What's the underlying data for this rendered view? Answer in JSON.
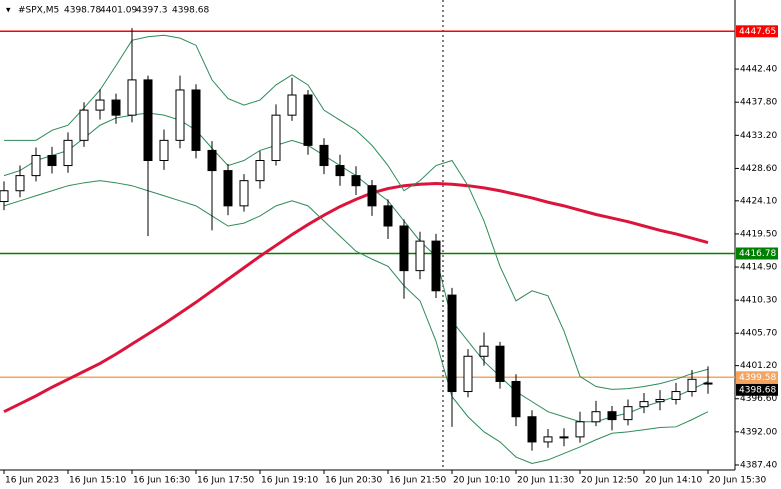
{
  "chart_data": {
    "type": "candlestick",
    "symbol": "#SPX,M5",
    "categories": [
      "16 Jun 2023",
      null,
      null,
      null,
      "16 Jun 15:10",
      null,
      null,
      null,
      "16 Jun 16:30",
      null,
      null,
      null,
      "16 Jun 17:50",
      null,
      null,
      null,
      "16 Jun 19:10",
      null,
      null,
      null,
      "16 Jun 20:30",
      null,
      null,
      null,
      "16 Jun 21:50",
      null,
      null,
      null,
      "20 Jun 10:10",
      null,
      null,
      null,
      "20 Jun 11:30",
      null,
      null,
      null,
      "20 Jun 12:50",
      null,
      null,
      null,
      "20 Jun 14:10",
      null,
      null,
      null,
      "20 Jun 15:30"
    ],
    "open": [
      4424.0,
      4425.5,
      4427.6,
      4430.4,
      4429.0,
      4432.5,
      4436.7,
      4438.1,
      4436.0,
      4440.9,
      4429.7,
      4432.5,
      4439.5,
      4431.1,
      4428.3,
      4423.4,
      4426.9,
      4429.7,
      4436.0,
      4438.8,
      4431.8,
      4429.0,
      4427.6,
      4426.2,
      4423.4,
      4420.6,
      4414.4,
      4418.5,
      4411.0,
      4397.6,
      4402.5,
      4403.9,
      4399.0,
      4394.1,
      4390.6,
      4391.3,
      4391.3,
      4393.4,
      4394.8,
      4393.7,
      4395.5,
      4396.2,
      4396.5,
      4397.6,
      4398.78
    ],
    "high": [
      4426.8,
      4429.0,
      4431.5,
      4431.6,
      4433.6,
      4437.8,
      4439.6,
      4439.0,
      4448.1,
      4441.5,
      4434.0,
      4441.5,
      4440.3,
      4432.4,
      4429.2,
      4427.8,
      4431.0,
      4437.5,
      4441.2,
      4439.5,
      4432.8,
      4430.5,
      4428.9,
      4427.0,
      4424.3,
      4421.5,
      4419.8,
      4419.5,
      4412.0,
      4403.5,
      4405.8,
      4404.5,
      4400.0,
      4395.0,
      4392.4,
      4392.5,
      4394.8,
      4396.3,
      4395.6,
      4396.5,
      4397.4,
      4397.8,
      4398.8,
      4400.6,
      4401.09
    ],
    "low": [
      4422.8,
      4424.6,
      4426.8,
      4427.9,
      4428.0,
      4431.6,
      4435.4,
      4434.8,
      4435.0,
      4419.2,
      4428.4,
      4431.4,
      4430.0,
      4420.0,
      4422.1,
      4422.6,
      4425.8,
      4429.0,
      4435.2,
      4430.5,
      4427.8,
      4426.2,
      4424.9,
      4422.0,
      4418.8,
      4410.5,
      4413.2,
      4410.6,
      4392.7,
      4396.8,
      4401.2,
      4398.0,
      4392.8,
      4389.4,
      4389.8,
      4390.0,
      4390.5,
      4392.8,
      4392.2,
      4392.9,
      4394.6,
      4395.0,
      4395.8,
      4396.9,
      4397.3
    ],
    "close": [
      4425.5,
      4427.6,
      4430.4,
      4429.0,
      4432.5,
      4436.7,
      4438.1,
      4436.0,
      4440.9,
      4429.7,
      4432.5,
      4439.5,
      4431.1,
      4428.3,
      4423.4,
      4426.9,
      4429.7,
      4436.0,
      4438.8,
      4431.8,
      4429.0,
      4427.6,
      4426.2,
      4423.4,
      4420.6,
      4414.4,
      4418.5,
      4411.6,
      4397.6,
      4402.5,
      4403.9,
      4399.0,
      4394.1,
      4390.6,
      4391.3,
      4391.3,
      4393.4,
      4394.8,
      4393.7,
      4395.5,
      4396.2,
      4396.5,
      4397.6,
      4399.3,
      4398.68
    ],
    "indicators": [
      {
        "color": "#dc143c",
        "width": 3,
        "values": [
          4394.8,
          4395.9,
          4397.0,
          4398.2,
          4399.3,
          4400.4,
          4401.5,
          4402.8,
          4404.2,
          4405.6,
          4407.0,
          4408.5,
          4410.0,
          4411.6,
          4413.2,
          4414.8,
          4416.4,
          4417.9,
          4419.4,
          4420.8,
          4422.1,
          4423.3,
          4424.3,
          4425.2,
          4425.8,
          4426.2,
          4426.4,
          4426.5,
          4426.4,
          4426.2,
          4425.9,
          4425.5,
          4425.0,
          4424.5,
          4423.9,
          4423.4,
          4422.8,
          4422.2,
          4421.7,
          4421.2,
          4420.6,
          4420.0,
          4419.5,
          4418.9,
          4418.3
        ]
      },
      {
        "color": "#2e8b57",
        "width": 1,
        "values": [
          4432.5,
          4432.5,
          4432.5,
          4433.9,
          4434.6,
          4437.0,
          4439.5,
          4442.9,
          4446.4,
          4446.9,
          4447.1,
          4446.7,
          4445.7,
          4440.9,
          4438.3,
          4437.4,
          4438.1,
          4440.2,
          4441.6,
          4440.2,
          4436.7,
          4435.3,
          4433.9,
          4431.8,
          4429.0,
          4425.5,
          4426.9,
          4429.0,
          4429.7,
          4426.2,
          4421.3,
          4415.0,
          4410.2,
          4411.6,
          4410.9,
          4406.0,
          4399.7,
          4398.3,
          4397.9,
          4398.0,
          4398.3,
          4398.7,
          4399.3,
          4400.1,
          4400.7
        ]
      },
      {
        "color": "#2e8b57",
        "width": 1,
        "values": [
          4427.6,
          4428.3,
          4429.7,
          4430.4,
          4431.1,
          4432.8,
          4434.6,
          4435.6,
          4436.0,
          4436.3,
          4436.0,
          4435.3,
          4433.9,
          4431.4,
          4429.0,
          4429.7,
          4431.1,
          4431.8,
          4432.5,
          4431.8,
          4430.4,
          4429.0,
          4427.6,
          4425.8,
          4424.1,
          4421.3,
          4418.5,
          4416.4,
          4407.4,
          4404.6,
          4401.8,
          4399.7,
          4397.6,
          4396.2,
          4394.8,
          4394.1,
          4393.4,
          4393.4,
          4394.1,
          4394.6,
          4395.5,
          4396.2,
          4396.9,
          4397.9,
          4399.0
        ]
      },
      {
        "color": "#2e8b57",
        "width": 1,
        "values": [
          4423.4,
          4424.1,
          4424.8,
          4425.5,
          4426.2,
          4426.6,
          4426.9,
          4426.6,
          4426.2,
          4425.5,
          4424.8,
          4424.1,
          4423.4,
          4422.0,
          4420.6,
          4421.0,
          4422.0,
          4423.4,
          4424.1,
          4423.4,
          4421.3,
          4419.2,
          4417.1,
          4416.0,
          4415.0,
          4412.3,
          4410.2,
          4404.6,
          4396.9,
          4394.1,
          4392.0,
          4390.6,
          4388.5,
          4387.6,
          4388.1,
          4389.0,
          4389.9,
          4390.9,
          4391.8,
          4392.0,
          4392.3,
          4392.6,
          4392.7,
          4393.7,
          4394.8
        ]
      }
    ],
    "levels": [
      {
        "value": 4447.65,
        "color": "#ff0000"
      },
      {
        "value": 4416.78,
        "color": "#008000"
      },
      {
        "value": 4399.58,
        "color": "#f4a460"
      }
    ],
    "ylim": [
      4386.7,
      4452.0
    ],
    "yticks": [
      {
        "value": 4442.4,
        "label": "4442.40"
      },
      {
        "value": 4437.8,
        "label": "4437.80"
      },
      {
        "value": 4433.2,
        "label": "4433.20"
      },
      {
        "value": 4428.6,
        "label": "4428.60"
      },
      {
        "value": 4424.1,
        "label": "4424.10"
      },
      {
        "value": 4419.5,
        "label": "4419.50"
      },
      {
        "value": 4414.9,
        "label": "4414.90"
      },
      {
        "value": 4410.3,
        "label": "4410.30"
      },
      {
        "value": 4405.7,
        "label": "4405.70"
      },
      {
        "value": 4401.2,
        "label": "4401.20"
      },
      {
        "value": 4396.6,
        "label": "4396.60"
      },
      {
        "value": 4392.0,
        "label": "4392.00"
      },
      {
        "value": 4387.4,
        "label": "4387.40"
      }
    ]
  }
}
